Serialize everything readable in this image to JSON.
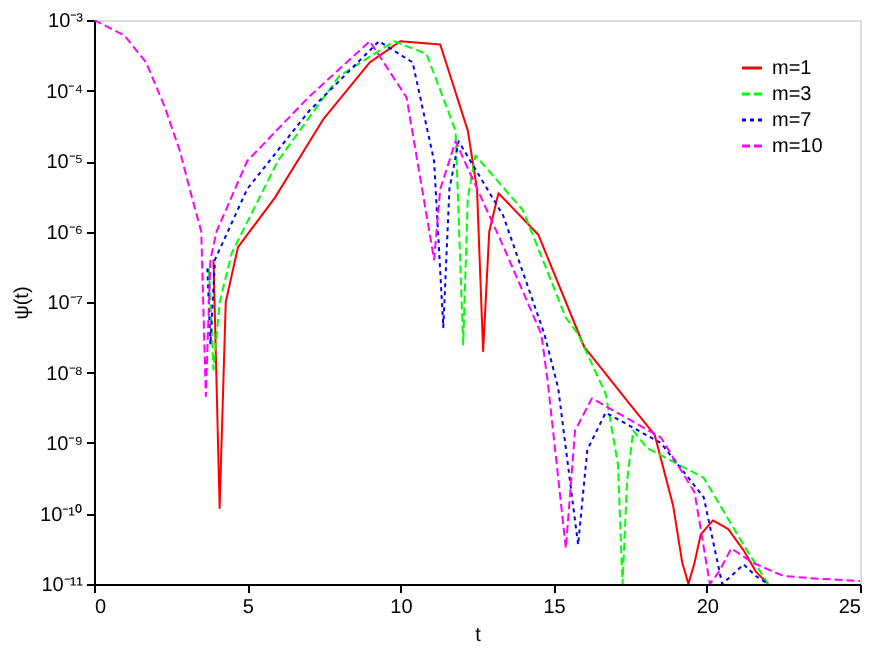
{
  "chart_data": {
    "type": "line",
    "xlabel": "t",
    "ylabel": "ψ(t)",
    "log": "y",
    "grid": false,
    "legend": "top right",
    "marker": "none",
    "xlim": [
      0,
      25
    ],
    "xticks": [
      0,
      5,
      10,
      15,
      20,
      25
    ],
    "ylim": [
      1e-11,
      0.001
    ],
    "yticks": [
      {
        "value": 0.001,
        "label": "10⁻³"
      },
      {
        "value": 0.0001,
        "label": "10⁻⁴"
      },
      {
        "value": 1e-05,
        "label": "10⁻⁵"
      },
      {
        "value": 1e-06,
        "label": "10⁻⁶"
      },
      {
        "value": 1e-07,
        "label": "10⁻⁷"
      },
      {
        "value": 1e-08,
        "label": "10⁻⁸"
      },
      {
        "value": 1e-09,
        "label": "10⁻⁹"
      },
      {
        "value": 1e-10,
        "label": "10⁻¹⁰"
      },
      {
        "value": 1e-11,
        "label": "10⁻¹¹"
      }
    ],
    "series": [
      {
        "name": "m=1",
        "color": "#ff0000",
        "line_style": "solid",
        "x": [
          3.9,
          4.1,
          4.3,
          4.7,
          5.9,
          7.5,
          9,
          10,
          11.3,
          12.2,
          12.5,
          12.7,
          12.9,
          13.2,
          14.5,
          16,
          17.5,
          18.3,
          18.9,
          19.2,
          19.4,
          19.6,
          19.8,
          20.2,
          20.7,
          21.2,
          21.6,
          22
        ],
        "values": [
          4e-07,
          1.2e-10,
          1e-07,
          6e-07,
          3e-06,
          4e-05,
          0.00025,
          0.0005,
          0.00045,
          2.7e-05,
          4e-06,
          2e-08,
          1e-06,
          3.5e-06,
          9e-07,
          2.3e-08,
          3.5e-09,
          1.3e-09,
          1.3e-10,
          2e-11,
          1e-11,
          2e-11,
          5e-11,
          8e-11,
          6e-11,
          3e-11,
          1.5e-11,
          1e-11
        ]
      },
      {
        "name": "m=3",
        "color": "#00ff00",
        "line_style": "dashed",
        "x": [
          3.75,
          3.9,
          4.1,
          4.5,
          6,
          8,
          9.8,
          10.85,
          11.8,
          12.05,
          12.2,
          12.45,
          14,
          15.4,
          15.8,
          16.7,
          17.1,
          17.25,
          17.4,
          17.6,
          18.05,
          19.9,
          21.2,
          22
        ],
        "values": [
          3e-07,
          1.1e-08,
          1e-07,
          5e-07,
          1e-05,
          0.00016,
          0.0005,
          0.00033,
          2.7e-05,
          2.5e-08,
          3e-06,
          1.2e-05,
          2e-06,
          6e-08,
          3.5e-08,
          5e-09,
          5e-10,
          1e-11,
          3e-10,
          1.5e-09,
          8.5e-10,
          3.2e-10,
          3.6e-11,
          1e-11
        ]
      },
      {
        "name": "m=7",
        "color": "#0000ff",
        "line_style": "dotted",
        "x": [
          3.7,
          3.8,
          3.95,
          5,
          7,
          9.3,
          10.4,
          11.1,
          11.4,
          11.6,
          11.9,
          13.35,
          14.7,
          15.15,
          15.8,
          16.1,
          16.7,
          18.5,
          19.9,
          20.5,
          20.8,
          21.2,
          21.6,
          22
        ],
        "values": [
          3e-07,
          2.5e-08,
          4e-07,
          4e-06,
          5e-05,
          0.0005,
          0.00025,
          1e-05,
          4.4e-08,
          4e-06,
          1.9e-05,
          1.7e-06,
          3.5e-08,
          6e-09,
          3.6e-11,
          8e-10,
          2.7e-09,
          1e-09,
          1.7e-10,
          1e-11,
          1.3e-11,
          1.9e-11,
          1.3e-11,
          1e-11
        ]
      },
      {
        "name": "m=10",
        "color": "#ff00ff",
        "line_style": "dashed",
        "x": [
          0,
          1,
          1.7,
          2.3,
          2.8,
          3.2,
          3.5,
          3.65,
          3.8,
          4,
          5,
          7,
          9,
          10.2,
          11.1,
          11.3,
          11.8,
          13.35,
          14.6,
          14.8,
          15.4,
          15.7,
          16.25,
          18.5,
          19.6,
          20.1,
          20.4,
          20.8,
          21.5,
          22.5,
          23.5,
          25
        ],
        "values": [
          0.001,
          0.0006,
          0.00025,
          6e-05,
          1.4e-05,
          3e-06,
          1e-06,
          4.6e-09,
          4e-07,
          1e-06,
          1e-05,
          8e-05,
          0.0005,
          8e-05,
          4e-07,
          4e-06,
          1.9e-05,
          6.3e-07,
          3.5e-08,
          8e-09,
          3.2e-11,
          1.5e-09,
          4.3e-09,
          1.2e-09,
          2e-10,
          1e-11,
          1.5e-11,
          3.2e-11,
          2e-11,
          1.3e-11,
          1.2e-11,
          1.1e-11
        ]
      }
    ]
  }
}
